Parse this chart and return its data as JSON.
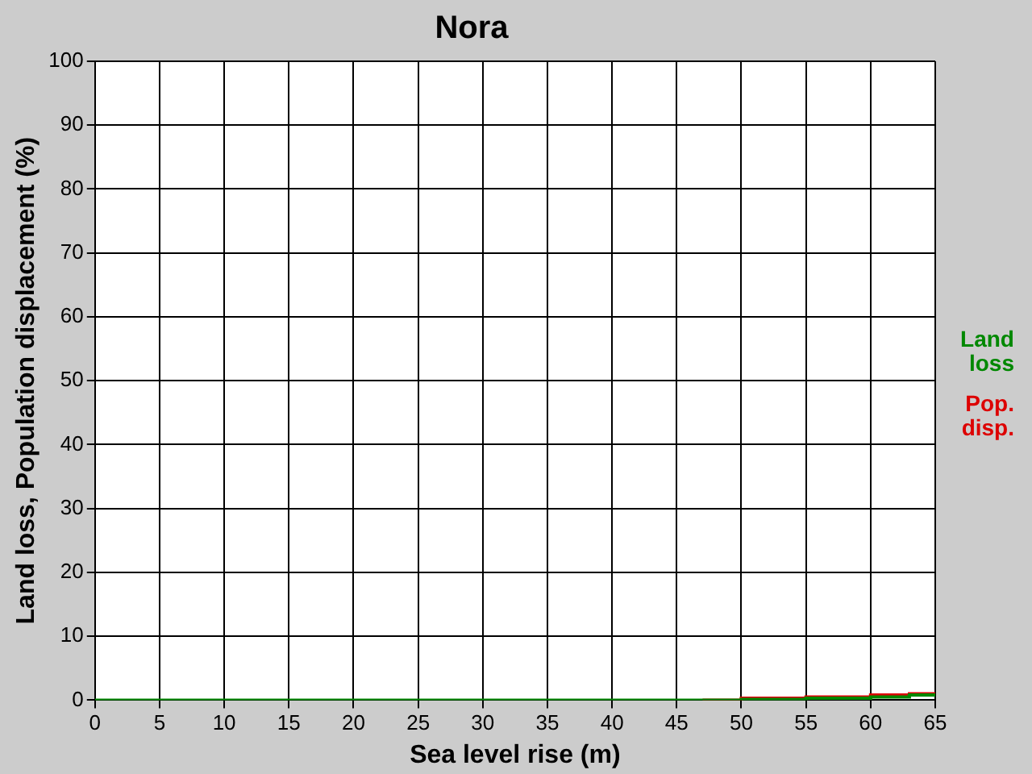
{
  "chart_data": {
    "type": "step",
    "title": "Nora",
    "xlabel": "Sea level rise (m)",
    "ylabel": "Land loss, Population displacement (%)",
    "xlim": [
      0,
      65
    ],
    "xticks": [
      0,
      5,
      10,
      15,
      20,
      25,
      30,
      35,
      40,
      45,
      50,
      55,
      60,
      65
    ],
    "ylim": [
      0,
      100
    ],
    "yticks": [
      0,
      10,
      20,
      30,
      40,
      50,
      60,
      70,
      80,
      90,
      100
    ],
    "grid": true,
    "legend": "right",
    "series": [
      {
        "name": "Land loss",
        "color": "#008800",
        "x": [
          0,
          50,
          55,
          60,
          63,
          65
        ],
        "values": [
          0,
          0.1,
          0.3,
          0.5,
          0.8,
          0.8
        ]
      },
      {
        "name": "Pop. disp.",
        "color": "#dd0000",
        "x": [
          47,
          50,
          55,
          60,
          63,
          65
        ],
        "values": [
          0,
          0.3,
          0.5,
          0.8,
          1,
          1
        ]
      }
    ]
  }
}
